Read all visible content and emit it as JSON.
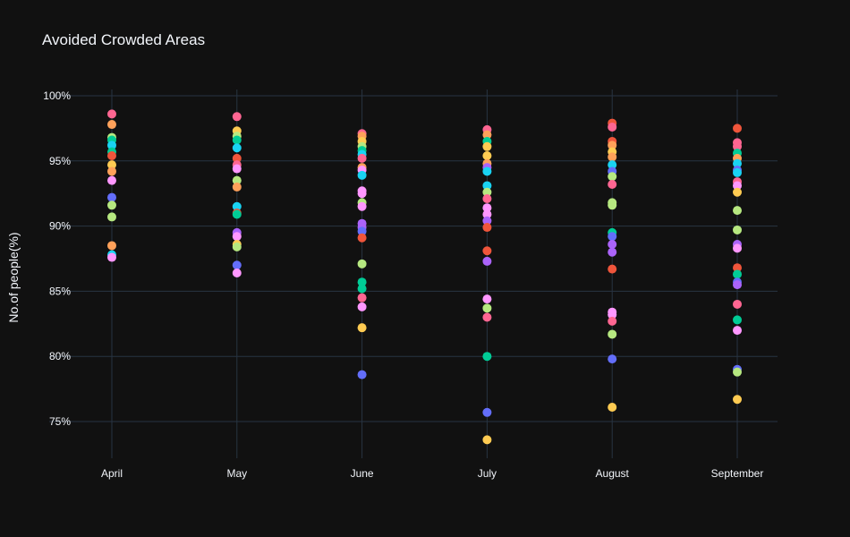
{
  "chart_data": {
    "type": "scatter",
    "title": "Avoided Crowded Areas",
    "xlabel": "",
    "ylabel": "No.of people(%)",
    "categories": [
      "April",
      "May",
      "June",
      "July",
      "August",
      "September"
    ],
    "ylim": [
      72,
      101
    ],
    "yticks": [
      75,
      80,
      85,
      90,
      95,
      100
    ],
    "ytick_labels": [
      "75%",
      "80%",
      "85%",
      "90%",
      "95%",
      "100%"
    ],
    "grid": true,
    "theme": {
      "background": "#111111",
      "grid": "#283442",
      "text": "#f2f5fa"
    },
    "palette": [
      "#636efa",
      "#EF553B",
      "#00cc96",
      "#ab63fa",
      "#FFA15A",
      "#19d3f3",
      "#FF6692",
      "#B6E880",
      "#FF97FF",
      "#FECB52"
    ],
    "points": [
      {
        "x": "April",
        "y": 98.6,
        "color": "#FF6692"
      },
      {
        "x": "April",
        "y": 97.8,
        "color": "#FFA15A"
      },
      {
        "x": "April",
        "y": 96.8,
        "color": "#B6E880"
      },
      {
        "x": "April",
        "y": 96.6,
        "color": "#00cc96"
      },
      {
        "x": "April",
        "y": 96.2,
        "color": "#19d3f3"
      },
      {
        "x": "April",
        "y": 95.7,
        "color": "#00cc96"
      },
      {
        "x": "April",
        "y": 95.4,
        "color": "#EF553B"
      },
      {
        "x": "April",
        "y": 94.7,
        "color": "#FECB52"
      },
      {
        "x": "April",
        "y": 94.2,
        "color": "#FFA15A"
      },
      {
        "x": "April",
        "y": 93.5,
        "color": "#FF97FF"
      },
      {
        "x": "April",
        "y": 92.2,
        "color": "#636efa"
      },
      {
        "x": "April",
        "y": 91.6,
        "color": "#B6E880"
      },
      {
        "x": "April",
        "y": 90.7,
        "color": "#B6E880"
      },
      {
        "x": "April",
        "y": 88.5,
        "color": "#FFA15A"
      },
      {
        "x": "April",
        "y": 87.8,
        "color": "#19d3f3"
      },
      {
        "x": "April",
        "y": 87.6,
        "color": "#FF97FF"
      },
      {
        "x": "May",
        "y": 98.4,
        "color": "#FF6692"
      },
      {
        "x": "May",
        "y": 97.3,
        "color": "#FECB52"
      },
      {
        "x": "May",
        "y": 96.9,
        "color": "#B6E880"
      },
      {
        "x": "May",
        "y": 96.6,
        "color": "#00cc96"
      },
      {
        "x": "May",
        "y": 96.0,
        "color": "#19d3f3"
      },
      {
        "x": "May",
        "y": 95.2,
        "color": "#EF553B"
      },
      {
        "x": "May",
        "y": 94.7,
        "color": "#FF6692"
      },
      {
        "x": "May",
        "y": 94.4,
        "color": "#FF97FF"
      },
      {
        "x": "May",
        "y": 93.5,
        "color": "#B6E880"
      },
      {
        "x": "May",
        "y": 93.0,
        "color": "#FFA15A"
      },
      {
        "x": "May",
        "y": 91.5,
        "color": "#19d3f3"
      },
      {
        "x": "May",
        "y": 91.0,
        "color": "#EF553B"
      },
      {
        "x": "May",
        "y": 90.9,
        "color": "#00cc96"
      },
      {
        "x": "May",
        "y": 89.5,
        "color": "#ab63fa"
      },
      {
        "x": "May",
        "y": 89.2,
        "color": "#FF97FF"
      },
      {
        "x": "May",
        "y": 88.6,
        "color": "#FECB52"
      },
      {
        "x": "May",
        "y": 88.4,
        "color": "#B6E880"
      },
      {
        "x": "May",
        "y": 87.0,
        "color": "#636efa"
      },
      {
        "x": "May",
        "y": 86.4,
        "color": "#FF97FF"
      },
      {
        "x": "June",
        "y": 97.1,
        "color": "#FF6692"
      },
      {
        "x": "June",
        "y": 96.9,
        "color": "#FFA15A"
      },
      {
        "x": "June",
        "y": 96.5,
        "color": "#FECB52"
      },
      {
        "x": "June",
        "y": 96.1,
        "color": "#B6E880"
      },
      {
        "x": "June",
        "y": 95.8,
        "color": "#00cc96"
      },
      {
        "x": "June",
        "y": 95.5,
        "color": "#19d3f3"
      },
      {
        "x": "June",
        "y": 95.2,
        "color": "#FF6692"
      },
      {
        "x": "June",
        "y": 94.5,
        "color": "#FFA15A"
      },
      {
        "x": "June",
        "y": 94.3,
        "color": "#FF97FF"
      },
      {
        "x": "June",
        "y": 93.9,
        "color": "#19d3f3"
      },
      {
        "x": "June",
        "y": 92.7,
        "color": "#FF97FF"
      },
      {
        "x": "June",
        "y": 92.5,
        "color": "#FF97FF"
      },
      {
        "x": "June",
        "y": 91.8,
        "color": "#B6E880"
      },
      {
        "x": "June",
        "y": 91.5,
        "color": "#FF97FF"
      },
      {
        "x": "June",
        "y": 90.2,
        "color": "#ab63fa"
      },
      {
        "x": "June",
        "y": 89.9,
        "color": "#ab63fa"
      },
      {
        "x": "June",
        "y": 89.6,
        "color": "#636efa"
      },
      {
        "x": "June",
        "y": 89.1,
        "color": "#EF553B"
      },
      {
        "x": "June",
        "y": 87.1,
        "color": "#B6E880"
      },
      {
        "x": "June",
        "y": 85.7,
        "color": "#00cc96"
      },
      {
        "x": "June",
        "y": 85.2,
        "color": "#00cc96"
      },
      {
        "x": "June",
        "y": 84.5,
        "color": "#FF6692"
      },
      {
        "x": "June",
        "y": 83.8,
        "color": "#FF97FF"
      },
      {
        "x": "June",
        "y": 82.2,
        "color": "#FECB52"
      },
      {
        "x": "June",
        "y": 78.6,
        "color": "#636efa"
      },
      {
        "x": "July",
        "y": 97.4,
        "color": "#FF6692"
      },
      {
        "x": "July",
        "y": 97.0,
        "color": "#FFA15A"
      },
      {
        "x": "July",
        "y": 96.5,
        "color": "#00cc96"
      },
      {
        "x": "July",
        "y": 96.1,
        "color": "#FECB52"
      },
      {
        "x": "July",
        "y": 95.4,
        "color": "#FECB52"
      },
      {
        "x": "July",
        "y": 94.8,
        "color": "#FFA15A"
      },
      {
        "x": "July",
        "y": 94.5,
        "color": "#ab63fa"
      },
      {
        "x": "July",
        "y": 94.2,
        "color": "#19d3f3"
      },
      {
        "x": "July",
        "y": 93.1,
        "color": "#19d3f3"
      },
      {
        "x": "July",
        "y": 92.6,
        "color": "#B6E880"
      },
      {
        "x": "July",
        "y": 92.1,
        "color": "#FF6692"
      },
      {
        "x": "July",
        "y": 91.4,
        "color": "#FF97FF"
      },
      {
        "x": "July",
        "y": 90.9,
        "color": "#FF97FF"
      },
      {
        "x": "July",
        "y": 90.4,
        "color": "#ab63fa"
      },
      {
        "x": "July",
        "y": 89.9,
        "color": "#EF553B"
      },
      {
        "x": "July",
        "y": 88.1,
        "color": "#EF553B"
      },
      {
        "x": "July",
        "y": 87.3,
        "color": "#ab63fa"
      },
      {
        "x": "July",
        "y": 84.4,
        "color": "#FF97FF"
      },
      {
        "x": "July",
        "y": 83.7,
        "color": "#B6E880"
      },
      {
        "x": "July",
        "y": 83.0,
        "color": "#FF6692"
      },
      {
        "x": "July",
        "y": 80.0,
        "color": "#00cc96"
      },
      {
        "x": "July",
        "y": 75.7,
        "color": "#636efa"
      },
      {
        "x": "July",
        "y": 73.6,
        "color": "#FECB52"
      },
      {
        "x": "August",
        "y": 97.9,
        "color": "#EF553B"
      },
      {
        "x": "August",
        "y": 97.6,
        "color": "#FF6692"
      },
      {
        "x": "August",
        "y": 96.5,
        "color": "#EF553B"
      },
      {
        "x": "August",
        "y": 96.2,
        "color": "#FFA15A"
      },
      {
        "x": "August",
        "y": 95.7,
        "color": "#FECB52"
      },
      {
        "x": "August",
        "y": 95.3,
        "color": "#FFA15A"
      },
      {
        "x": "August",
        "y": 94.7,
        "color": "#19d3f3"
      },
      {
        "x": "August",
        "y": 94.2,
        "color": "#636efa"
      },
      {
        "x": "August",
        "y": 93.8,
        "color": "#B6E880"
      },
      {
        "x": "August",
        "y": 93.2,
        "color": "#FF6692"
      },
      {
        "x": "August",
        "y": 91.8,
        "color": "#B6E880"
      },
      {
        "x": "August",
        "y": 91.6,
        "color": "#B6E880"
      },
      {
        "x": "August",
        "y": 89.5,
        "color": "#00cc96"
      },
      {
        "x": "August",
        "y": 89.2,
        "color": "#636efa"
      },
      {
        "x": "August",
        "y": 88.6,
        "color": "#ab63fa"
      },
      {
        "x": "August",
        "y": 88.0,
        "color": "#ab63fa"
      },
      {
        "x": "August",
        "y": 86.7,
        "color": "#EF553B"
      },
      {
        "x": "August",
        "y": 83.4,
        "color": "#FF97FF"
      },
      {
        "x": "August",
        "y": 83.2,
        "color": "#FF97FF"
      },
      {
        "x": "August",
        "y": 82.7,
        "color": "#FF6692"
      },
      {
        "x": "August",
        "y": 81.7,
        "color": "#B6E880"
      },
      {
        "x": "August",
        "y": 79.8,
        "color": "#636efa"
      },
      {
        "x": "August",
        "y": 76.1,
        "color": "#FECB52"
      },
      {
        "x": "September",
        "y": 97.5,
        "color": "#EF553B"
      },
      {
        "x": "September",
        "y": 96.4,
        "color": "#FF6692"
      },
      {
        "x": "September",
        "y": 96.1,
        "color": "#FF6692"
      },
      {
        "x": "September",
        "y": 95.6,
        "color": "#00cc96"
      },
      {
        "x": "September",
        "y": 95.2,
        "color": "#FFA15A"
      },
      {
        "x": "September",
        "y": 94.8,
        "color": "#19d3f3"
      },
      {
        "x": "September",
        "y": 94.3,
        "color": "#636efa"
      },
      {
        "x": "September",
        "y": 94.1,
        "color": "#19d3f3"
      },
      {
        "x": "September",
        "y": 93.4,
        "color": "#FF6692"
      },
      {
        "x": "September",
        "y": 93.1,
        "color": "#FF97FF"
      },
      {
        "x": "September",
        "y": 92.6,
        "color": "#FECB52"
      },
      {
        "x": "September",
        "y": 91.2,
        "color": "#B6E880"
      },
      {
        "x": "September",
        "y": 89.7,
        "color": "#B6E880"
      },
      {
        "x": "September",
        "y": 88.6,
        "color": "#ab63fa"
      },
      {
        "x": "September",
        "y": 88.3,
        "color": "#FF97FF"
      },
      {
        "x": "September",
        "y": 86.8,
        "color": "#EF553B"
      },
      {
        "x": "September",
        "y": 86.3,
        "color": "#00cc96"
      },
      {
        "x": "September",
        "y": 85.7,
        "color": "#636efa"
      },
      {
        "x": "September",
        "y": 85.5,
        "color": "#ab63fa"
      },
      {
        "x": "September",
        "y": 84.0,
        "color": "#FF6692"
      },
      {
        "x": "September",
        "y": 82.8,
        "color": "#00cc96"
      },
      {
        "x": "September",
        "y": 82.0,
        "color": "#FF97FF"
      },
      {
        "x": "September",
        "y": 79.0,
        "color": "#636efa"
      },
      {
        "x": "September",
        "y": 78.8,
        "color": "#B6E880"
      },
      {
        "x": "September",
        "y": 76.7,
        "color": "#FECB52"
      }
    ]
  }
}
